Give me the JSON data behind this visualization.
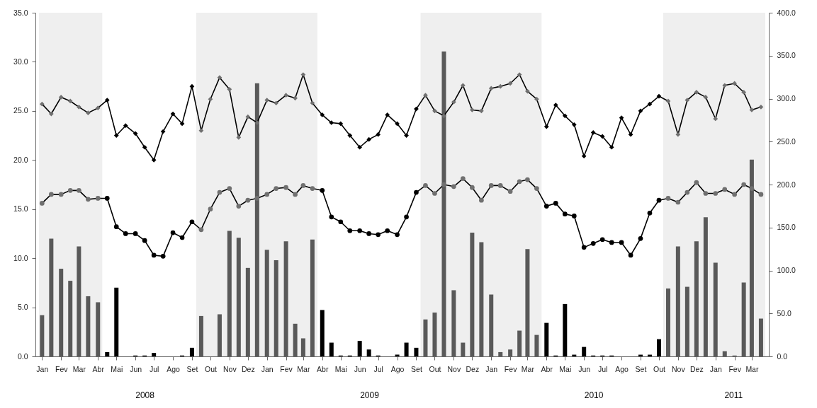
{
  "chart_data": {
    "type": "line",
    "x": [
      "2008-01-01",
      "2008-01-16",
      "2008-02-01",
      "2008-02-16",
      "2008-03-01",
      "2008-03-16",
      "2008-04-01",
      "2008-04-16",
      "2008-05-01",
      "2008-05-16",
      "2008-06-01",
      "2008-06-16",
      "2008-07-01",
      "2008-07-16",
      "2008-08-01",
      "2008-08-16",
      "2008-09-01",
      "2008-09-16",
      "2008-10-01",
      "2008-10-16",
      "2008-11-01",
      "2008-11-16",
      "2008-12-01",
      "2008-12-16",
      "2009-01-01",
      "2009-01-16",
      "2009-02-01",
      "2009-02-16",
      "2009-03-01",
      "2009-03-16",
      "2009-04-01",
      "2009-04-16",
      "2009-05-01",
      "2009-05-16",
      "2009-06-01",
      "2009-06-16",
      "2009-07-01",
      "2009-07-16",
      "2009-08-01",
      "2009-08-16",
      "2009-09-01",
      "2009-09-16",
      "2009-10-01",
      "2009-10-16",
      "2009-11-01",
      "2009-11-16",
      "2009-12-01",
      "2009-12-16",
      "2010-01-01",
      "2010-01-16",
      "2010-02-01",
      "2010-02-16",
      "2010-03-01",
      "2010-03-16",
      "2010-04-01",
      "2010-04-16",
      "2010-05-01",
      "2010-05-16",
      "2010-06-01",
      "2010-06-16",
      "2010-07-01",
      "2010-07-16",
      "2010-08-01",
      "2010-08-16",
      "2010-09-01",
      "2010-09-16",
      "2010-10-01",
      "2010-10-16",
      "2010-11-01",
      "2010-11-16",
      "2010-12-01",
      "2010-12-16",
      "2011-01-01",
      "2011-01-16",
      "2011-02-01",
      "2011-02-16",
      "2011-03-01",
      "2011-03-16"
    ],
    "series": [
      {
        "type": "bar",
        "axis": "y2",
        "colors": [
          "#595959",
          "#595959",
          "#595959",
          "#595959",
          "#595959",
          "#595959",
          "#595959",
          "#000000",
          "#000000",
          "#000000",
          "#000000",
          "#000000",
          "#000000",
          "#000000",
          "#000000",
          "#000000",
          "#000000",
          "#595959",
          "#595959",
          "#595959",
          "#595959",
          "#595959",
          "#595959",
          "#595959",
          "#595959",
          "#595959",
          "#595959",
          "#595959",
          "#595959",
          "#595959",
          "#000000",
          "#000000",
          "#000000",
          "#000000",
          "#000000",
          "#000000",
          "#000000",
          "#000000",
          "#000000",
          "#000000",
          "#000000",
          "#595959",
          "#595959",
          "#595959",
          "#595959",
          "#595959",
          "#595959",
          "#595959",
          "#595959",
          "#595959",
          "#595959",
          "#595959",
          "#595959",
          "#595959",
          "#000000",
          "#000000",
          "#000000",
          "#000000",
          "#000000",
          "#000000",
          "#000000",
          "#000000",
          "#000000",
          "#000000",
          "#000000",
          "#000000",
          "#000000",
          "#595959",
          "#595959",
          "#595959",
          "#595959",
          "#595959",
          "#595959",
          "#595959",
          "#595959",
          "#595959",
          "#595959",
          "#595959"
        ],
        "values": [
          48,
          137,
          102,
          88,
          128,
          70,
          63,
          5,
          80,
          0,
          1,
          1,
          4,
          0,
          0,
          1,
          10,
          47,
          0,
          49,
          146,
          138,
          103,
          318,
          124,
          112,
          134,
          38,
          21,
          136,
          54,
          16,
          1,
          1,
          18,
          8,
          1,
          0,
          2,
          16,
          10,
          43,
          51,
          355,
          77,
          16,
          144,
          133,
          72,
          5,
          8,
          30,
          125,
          25,
          39,
          1,
          61,
          2,
          11,
          1,
          1,
          1,
          0,
          0,
          2,
          2,
          20,
          79,
          128,
          81,
          134,
          162,
          109,
          6,
          1,
          86,
          229,
          44
        ]
      },
      {
        "marker": "diamond",
        "color": "#000000",
        "colors": [
          "#707070",
          "#707070",
          "#707070",
          "#707070",
          "#707070",
          "#707070",
          "#707070",
          "#000000",
          "#000000",
          "#000000",
          "#000000",
          "#000000",
          "#000000",
          "#000000",
          "#000000",
          "#000000",
          "#000000",
          "#707070",
          "#707070",
          "#707070",
          "#707070",
          "#707070",
          "#707070",
          "#707070",
          "#707070",
          "#707070",
          "#707070",
          "#707070",
          "#707070",
          "#707070",
          "#000000",
          "#000000",
          "#000000",
          "#000000",
          "#000000",
          "#000000",
          "#000000",
          "#000000",
          "#000000",
          "#000000",
          "#000000",
          "#707070",
          "#707070",
          "#707070",
          "#707070",
          "#707070",
          "#707070",
          "#707070",
          "#707070",
          "#707070",
          "#707070",
          "#707070",
          "#707070",
          "#707070",
          "#000000",
          "#000000",
          "#000000",
          "#000000",
          "#000000",
          "#000000",
          "#000000",
          "#000000",
          "#000000",
          "#000000",
          "#000000",
          "#000000",
          "#000000",
          "#707070",
          "#707070",
          "#707070",
          "#707070",
          "#707070",
          "#707070",
          "#707070",
          "#707070",
          "#707070",
          "#707070",
          "#707070"
        ],
        "values": [
          25.7,
          24.7,
          26.4,
          26.0,
          25.4,
          24.8,
          25.3,
          26.1,
          22.5,
          23.5,
          22.7,
          21.3,
          20.0,
          22.9,
          24.7,
          23.7,
          27.5,
          23.0,
          26.2,
          28.4,
          27.2,
          22.3,
          24.4,
          23.8,
          26.1,
          25.8,
          26.6,
          26.3,
          28.7,
          25.8,
          24.6,
          23.8,
          23.7,
          22.5,
          21.3,
          22.1,
          22.6,
          24.6,
          23.7,
          22.5,
          25.2,
          26.6,
          25.0,
          24.5,
          25.9,
          27.6,
          25.1,
          25.0,
          27.3,
          27.5,
          27.8,
          28.7,
          27.0,
          26.2,
          23.4,
          25.6,
          24.5,
          23.6,
          20.4,
          22.8,
          22.4,
          21.3,
          24.3,
          22.6,
          25.0,
          25.7,
          26.5,
          26.0,
          22.6,
          26.1,
          26.9,
          26.4,
          24.2,
          27.6,
          27.8,
          26.9,
          25.1,
          25.4
        ]
      },
      {
        "marker": "circle",
        "color": "#000000",
        "colors": [
          "#707070",
          "#707070",
          "#707070",
          "#707070",
          "#707070",
          "#707070",
          "#707070",
          "#000000",
          "#000000",
          "#000000",
          "#000000",
          "#000000",
          "#000000",
          "#000000",
          "#000000",
          "#000000",
          "#000000",
          "#707070",
          "#707070",
          "#707070",
          "#707070",
          "#707070",
          "#707070",
          "#707070",
          "#707070",
          "#707070",
          "#707070",
          "#707070",
          "#707070",
          "#707070",
          "#000000",
          "#000000",
          "#000000",
          "#000000",
          "#000000",
          "#000000",
          "#000000",
          "#000000",
          "#000000",
          "#000000",
          "#000000",
          "#707070",
          "#707070",
          "#707070",
          "#707070",
          "#707070",
          "#707070",
          "#707070",
          "#707070",
          "#707070",
          "#707070",
          "#707070",
          "#707070",
          "#707070",
          "#000000",
          "#000000",
          "#000000",
          "#000000",
          "#000000",
          "#000000",
          "#000000",
          "#000000",
          "#000000",
          "#000000",
          "#000000",
          "#000000",
          "#000000",
          "#707070",
          "#707070",
          "#707070",
          "#707070",
          "#707070",
          "#707070",
          "#707070",
          "#707070",
          "#707070",
          "#707070",
          "#707070"
        ],
        "values": [
          15.6,
          16.5,
          16.5,
          16.9,
          16.9,
          16.0,
          16.1,
          16.1,
          13.2,
          12.5,
          12.5,
          11.8,
          10.3,
          10.2,
          12.6,
          12.1,
          13.7,
          12.9,
          15.0,
          16.7,
          17.1,
          15.3,
          15.9,
          16.1,
          16.5,
          17.1,
          17.2,
          16.5,
          17.4,
          17.1,
          16.9,
          14.2,
          13.7,
          12.8,
          12.8,
          12.5,
          12.4,
          12.8,
          12.4,
          14.2,
          16.7,
          17.4,
          16.6,
          17.5,
          17.3,
          18.1,
          17.2,
          15.9,
          17.4,
          17.4,
          16.8,
          17.8,
          18.0,
          17.1,
          15.3,
          15.6,
          14.5,
          14.3,
          11.1,
          11.5,
          11.9,
          11.6,
          11.6,
          10.3,
          12.0,
          14.6,
          15.9,
          16.1,
          15.7,
          16.7,
          17.7,
          16.6,
          16.6,
          17.0,
          16.5,
          17.5,
          17.1,
          16.5
        ]
      }
    ],
    "xlim": [
      "2007-12-27",
      "2011-03-23"
    ],
    "xticks": [
      {
        "value": "2008-01-01",
        "label": "Jan"
      },
      {
        "value": "2008-02-01",
        "label": "Fev"
      },
      {
        "value": "2008-03-01",
        "label": "Mar"
      },
      {
        "value": "2008-04-01",
        "label": "Abr"
      },
      {
        "value": "2008-05-01",
        "label": "Mai"
      },
      {
        "value": "2008-06-01",
        "label": "Jun"
      },
      {
        "value": "2008-07-01",
        "label": "Jul"
      },
      {
        "value": "2008-08-01",
        "label": "Ago"
      },
      {
        "value": "2008-09-01",
        "label": "Set"
      },
      {
        "value": "2008-10-01",
        "label": "Out"
      },
      {
        "value": "2008-11-01",
        "label": "Nov"
      },
      {
        "value": "2008-12-01",
        "label": "Dez"
      },
      {
        "value": "2009-01-01",
        "label": "Jan"
      },
      {
        "value": "2009-02-01",
        "label": "Fev"
      },
      {
        "value": "2009-03-01",
        "label": "Mar"
      },
      {
        "value": "2009-04-01",
        "label": "Abr"
      },
      {
        "value": "2009-05-01",
        "label": "Mai"
      },
      {
        "value": "2009-06-01",
        "label": "Jun"
      },
      {
        "value": "2009-07-01",
        "label": "Jul"
      },
      {
        "value": "2009-08-01",
        "label": "Ago"
      },
      {
        "value": "2009-09-01",
        "label": "Set"
      },
      {
        "value": "2009-10-01",
        "label": "Out"
      },
      {
        "value": "2009-11-01",
        "label": "Nov"
      },
      {
        "value": "2009-12-01",
        "label": "Dez"
      },
      {
        "value": "2010-01-01",
        "label": "Jan"
      },
      {
        "value": "2010-02-01",
        "label": "Fev"
      },
      {
        "value": "2010-03-01",
        "label": "Mar"
      },
      {
        "value": "2010-04-01",
        "label": "Abr"
      },
      {
        "value": "2010-05-01",
        "label": "Mai"
      },
      {
        "value": "2010-06-01",
        "label": "Jun"
      },
      {
        "value": "2010-07-01",
        "label": "Jul"
      },
      {
        "value": "2010-08-01",
        "label": "Ago"
      },
      {
        "value": "2010-09-01",
        "label": "Set"
      },
      {
        "value": "2010-10-01",
        "label": "Out"
      },
      {
        "value": "2010-11-01",
        "label": "Nov"
      },
      {
        "value": "2010-12-01",
        "label": "Dez"
      },
      {
        "value": "2011-01-01",
        "label": "Jan"
      },
      {
        "value": "2011-02-01",
        "label": "Fev"
      },
      {
        "value": "2011-03-01",
        "label": "Mar"
      }
    ],
    "ylim": [
      0,
      35
    ],
    "yticks": [
      {
        "value": 0,
        "label": "0.0"
      },
      {
        "value": 5,
        "label": "5.0"
      },
      {
        "value": 10,
        "label": "10.0"
      },
      {
        "value": 15,
        "label": "15.0"
      },
      {
        "value": 20,
        "label": "20.0"
      },
      {
        "value": 25,
        "label": "25.0"
      },
      {
        "value": 30,
        "label": "30.0"
      },
      {
        "value": 35,
        "label": "35.0"
      }
    ],
    "y2lim": [
      0,
      400
    ],
    "y2ticks": [
      {
        "value": 0,
        "label": "0.0"
      },
      {
        "value": 50,
        "label": "50.0"
      },
      {
        "value": 100,
        "label": "100.0"
      },
      {
        "value": 150,
        "label": "150.0"
      },
      {
        "value": 200,
        "label": "200.0"
      },
      {
        "value": 250,
        "label": "250.0"
      },
      {
        "value": 300,
        "label": "300.0"
      },
      {
        "value": 350,
        "label": "350.0"
      },
      {
        "value": 400,
        "label": "400.0"
      }
    ],
    "bands": [
      {
        "axis": "x",
        "from": "2007-12-27",
        "to": "2008-04-08",
        "color": "#efefef"
      },
      {
        "axis": "x",
        "from": "2008-09-08",
        "to": "2009-03-24",
        "color": "#efefef"
      },
      {
        "axis": "x",
        "from": "2009-09-08",
        "to": "2010-03-24",
        "color": "#efefef"
      },
      {
        "axis": "x",
        "from": "2010-10-08",
        "to": "2011-03-23",
        "color": "#efefef"
      }
    ],
    "annotations": [
      "2008",
      "2009",
      "2010",
      "2011"
    ]
  }
}
